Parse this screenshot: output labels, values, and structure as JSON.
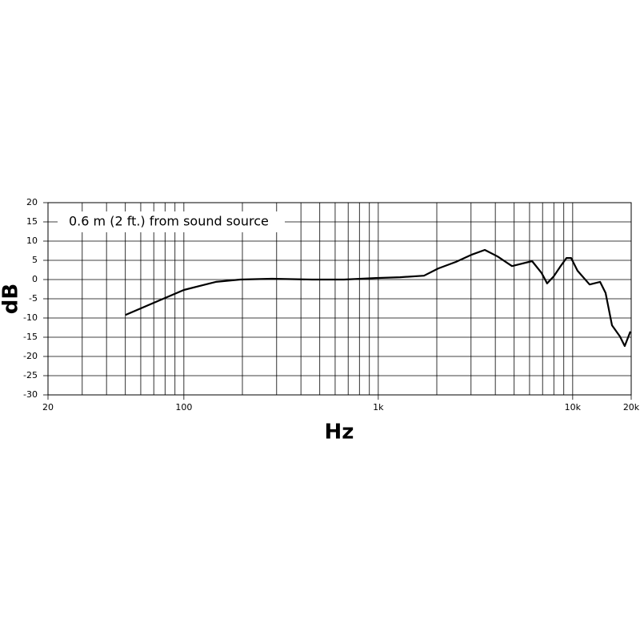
{
  "chart_data": {
    "type": "line",
    "annotation": "0.6 m (2 ft.) from sound source",
    "xlabel": "Hz",
    "ylabel": "dB",
    "log_x": true,
    "grid": true,
    "xlim": [
      20,
      20000
    ],
    "ylim": [
      -30,
      20
    ],
    "xticks": [
      20,
      100,
      {
        "value": 1000,
        "label": "1k"
      },
      {
        "value": 10000,
        "label": "10k"
      },
      {
        "value": 20000,
        "label": "20k"
      }
    ],
    "xgrid": [
      30,
      40,
      50,
      60,
      70,
      80,
      90,
      200,
      300,
      400,
      500,
      600,
      700,
      800,
      900,
      2000,
      3000,
      4000,
      5000,
      6000,
      7000,
      8000,
      9000
    ],
    "yticks": [
      -30,
      -25,
      -20,
      -15,
      -10,
      -5,
      0,
      5,
      10,
      15,
      20
    ],
    "series": [
      {
        "color": "#000000",
        "x": [
          50,
          100,
          146,
          195,
          284,
          456,
          667,
          973,
          1294,
          1718,
          2037,
          2512,
          3034,
          3532,
          4111,
          4875,
          6180,
          6923,
          7390,
          7980,
          8610,
          9290,
          9820,
          10590,
          12220,
          13830,
          14770,
          15930,
          17500,
          18520,
          19820
        ],
        "values": [
          -9.2,
          -2.7,
          -0.6,
          0,
          0.2,
          0,
          0,
          0.4,
          0.6,
          1,
          2.9,
          4.6,
          6.5,
          7.7,
          6.0,
          3.5,
          4.8,
          1.7,
          -1.0,
          0.8,
          3.3,
          5.6,
          5.6,
          2.3,
          -1.3,
          -0.6,
          -3.5,
          -11.9,
          -14.8,
          -17.3,
          -13.5
        ]
      }
    ]
  }
}
